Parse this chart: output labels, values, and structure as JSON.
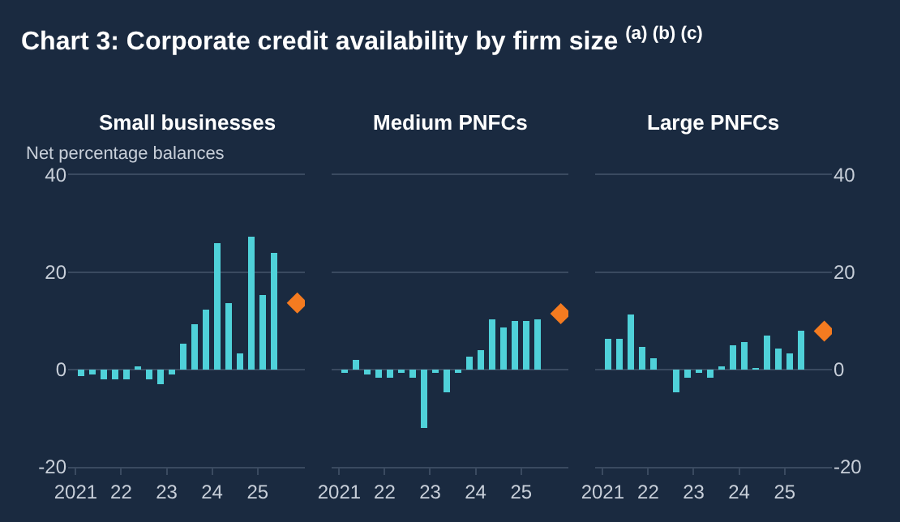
{
  "chart_data": [
    {
      "type": "bar",
      "title": "Small businesses",
      "ylabel": "Net percentage balances",
      "annotations": [
        "Chart 3: Corporate credit availability by firm size $^{(a) (b) (c)}$"
      ],
      "x": [
        "2021-02-15",
        "2021-05-15",
        "2021-08-15",
        "2021-11-15",
        "2022-02-15",
        "2022-05-15",
        "2022-08-15",
        "2022-11-15",
        "2023-02-15",
        "2023-05-15",
        "2023-08-15",
        "2023-11-15",
        "2024-02-15",
        "2024-05-15",
        "2024-08-15",
        "2024-11-15",
        "2025-02-15",
        "2025-05-15"
      ],
      "series": [
        {
          "color": "#4fd1d9",
          "values": [
            -1.2,
            -1,
            -2,
            -2,
            -2,
            0.5,
            -2,
            -3,
            -1,
            5.2,
            9.5,
            12.5,
            26,
            13.7,
            3.4,
            27.3,
            15.2,
            24
          ]
        },
        {
          "type": "scatter",
          "marker": "diamond",
          "color": "#f47b20",
          "x": [
            "2025-11-15"
          ],
          "values": [
            13.7
          ]
        }
      ],
      "xlim": [
        "2020-11-01",
        "2026-01-15"
      ],
      "xticks": [
        {
          "value": "2021-01-01",
          "label": "2021"
        },
        {
          "value": "2022-01-01",
          "label": "22"
        },
        {
          "value": "2023-01-01",
          "label": "23"
        },
        {
          "value": "2024-01-01",
          "label": "24"
        },
        {
          "value": "2025-01-01",
          "label": "25"
        }
      ],
      "ylim": [
        -20,
        40
      ],
      "yticks": [
        -20,
        0,
        20,
        40
      ],
      "grid": "y"
    },
    {
      "type": "bar",
      "title": "Medium PNFCs",
      "x": [
        "2021-02-15",
        "2021-05-15",
        "2021-08-15",
        "2021-11-15",
        "2022-02-15",
        "2022-05-15",
        "2022-08-15",
        "2022-11-15",
        "2023-02-15",
        "2023-05-15",
        "2023-08-15",
        "2023-11-15",
        "2024-02-15",
        "2024-05-15",
        "2024-08-15",
        "2024-11-15",
        "2025-02-15",
        "2025-05-15"
      ],
      "series": [
        {
          "color": "#4fd1d9",
          "values": [
            -0.8,
            1.9,
            -1,
            -1.8,
            -1.8,
            -0.7,
            -1.8,
            -12.1,
            -0.8,
            -4.5,
            -0.8,
            2.6,
            4,
            10.3,
            8.7,
            10,
            10,
            10.3
          ]
        },
        {
          "type": "scatter",
          "marker": "diamond",
          "color": "#f47b20",
          "x": [
            "2025-11-15"
          ],
          "values": [
            11.5
          ]
        }
      ],
      "xlim": [
        "2020-11-01",
        "2026-01-15"
      ],
      "xticks": [
        {
          "value": "2021-01-01",
          "label": "2021"
        },
        {
          "value": "2022-01-01",
          "label": "22"
        },
        {
          "value": "2023-01-01",
          "label": "23"
        },
        {
          "value": "2024-01-01",
          "label": "24"
        },
        {
          "value": "2025-01-01",
          "label": "25"
        }
      ],
      "ylim": [
        -20,
        40
      ],
      "yticks": [
        -20,
        0,
        20,
        40
      ],
      "grid": "y",
      "tick_labels": "x"
    },
    {
      "type": "bar",
      "title": "Large PNFCs",
      "x": [
        "2021-02-15",
        "2021-05-15",
        "2021-08-15",
        "2021-11-15",
        "2022-02-15",
        "2022-05-15",
        "2022-08-15",
        "2022-11-15",
        "2023-02-15",
        "2023-05-15",
        "2023-08-15",
        "2023-11-15",
        "2024-02-15",
        "2024-05-15",
        "2024-08-15",
        "2024-11-15",
        "2025-02-15",
        "2025-05-15"
      ],
      "series": [
        {
          "color": "#4fd1d9",
          "values": [
            6.3,
            6.3,
            11.2,
            4.6,
            2.5,
            0,
            -4.5,
            -1.8,
            -0.8,
            -1.8,
            0.8,
            5,
            5.7,
            0.2,
            7,
            4.2,
            3.2,
            8
          ]
        },
        {
          "type": "scatter",
          "marker": "diamond",
          "color": "#f47b20",
          "x": [
            "2025-11-15"
          ],
          "values": [
            7.9
          ]
        }
      ],
      "xlim": [
        "2020-11-01",
        "2026-01-15"
      ],
      "xticks": [
        {
          "value": "2021-01-01",
          "label": "2021"
        },
        {
          "value": "2022-01-01",
          "label": "22"
        },
        {
          "value": "2023-01-01",
          "label": "23"
        },
        {
          "value": "2024-01-01",
          "label": "24"
        },
        {
          "value": "2025-01-01",
          "label": "25"
        }
      ],
      "ylim": [
        -20,
        40
      ],
      "yticks": [
        -20,
        0,
        20,
        40
      ],
      "grid": "y"
    }
  ]
}
